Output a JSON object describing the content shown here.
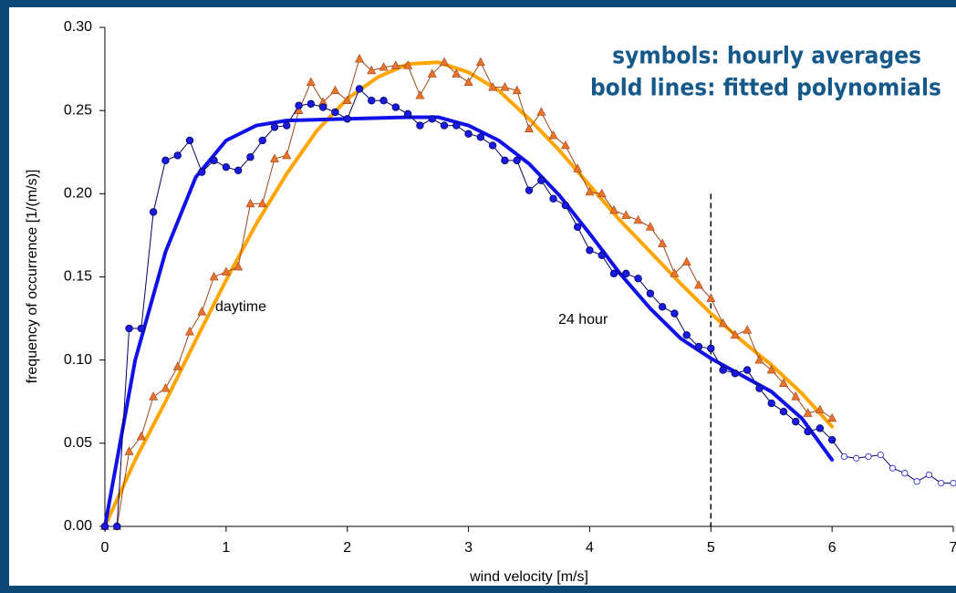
{
  "chart_data": {
    "type": "line",
    "xlabel": "wind velocity [m/s]",
    "ylabel": "frequency of occurrence [1/(m/s)]",
    "xlim": [
      0,
      7
    ],
    "ylim": [
      0,
      0.3
    ],
    "xticks": [
      0,
      1,
      2,
      3,
      4,
      5,
      6,
      7
    ],
    "yticks": [
      {
        "value": 0,
        "label": "0.00"
      },
      {
        "value": 0.05,
        "label": "0.05"
      },
      {
        "value": 0.1,
        "label": "0.10"
      },
      {
        "value": 0.15,
        "label": "0.15"
      },
      {
        "value": 0.2,
        "label": "0.20"
      },
      {
        "value": 0.25,
        "label": "0.25"
      },
      {
        "value": 0.3,
        "label": "0.30"
      }
    ],
    "grid": false,
    "annotations": [
      "symbols: hourly averages",
      "bold lines: fitted polynomials",
      "daytime",
      "24 hour"
    ],
    "reference_line": {
      "x": 5,
      "y_top": 0.2
    },
    "series": [
      {
        "style": "fit",
        "color": "#ffa500",
        "x": [
          0,
          0.25,
          0.5,
          0.75,
          1,
          1.25,
          1.5,
          1.75,
          2,
          2.25,
          2.5,
          2.75,
          3,
          3.25,
          3.5,
          3.75,
          4,
          4.25,
          4.5,
          4.75,
          5,
          5.25,
          5.5,
          5.75,
          6
        ],
        "values": [
          0,
          0.04,
          0.075,
          0.112,
          0.148,
          0.182,
          0.212,
          0.238,
          0.257,
          0.27,
          0.278,
          0.279,
          0.273,
          0.262,
          0.245,
          0.226,
          0.205,
          0.184,
          0.165,
          0.146,
          0.128,
          0.112,
          0.097,
          0.08,
          0.06
        ]
      },
      {
        "style": "markers",
        "marker": "triangle",
        "color": "#e8742c",
        "line_color": "#a0451c",
        "x": [
          0,
          0.1,
          0.2,
          0.3,
          0.4,
          0.5,
          0.6,
          0.7,
          0.8,
          0.9,
          1,
          1.1,
          1.2,
          1.3,
          1.4,
          1.5,
          1.6,
          1.7,
          1.8,
          1.9,
          2,
          2.1,
          2.2,
          2.3,
          2.4,
          2.5,
          2.6,
          2.7,
          2.8,
          2.9,
          3,
          3.1,
          3.2,
          3.3,
          3.4,
          3.5,
          3.6,
          3.7,
          3.8,
          3.9,
          4,
          4.1,
          4.2,
          4.3,
          4.4,
          4.5,
          4.6,
          4.7,
          4.8,
          4.9,
          5,
          5.1,
          5.2,
          5.3,
          5.4,
          5.5,
          5.6,
          5.7,
          5.8,
          5.9,
          6
        ],
        "values": [
          0,
          0,
          0.045,
          0.054,
          0.078,
          0.083,
          0.096,
          0.117,
          0.129,
          0.15,
          0.153,
          0.156,
          0.194,
          0.194,
          0.221,
          0.223,
          0.25,
          0.267,
          0.255,
          0.262,
          0.256,
          0.281,
          0.274,
          0.276,
          0.277,
          0.277,
          0.259,
          0.272,
          0.279,
          0.272,
          0.267,
          0.279,
          0.264,
          0.264,
          0.262,
          0.239,
          0.249,
          0.235,
          0.229,
          0.215,
          0.201,
          0.2,
          0.19,
          0.187,
          0.184,
          0.18,
          0.17,
          0.152,
          0.159,
          0.145,
          0.137,
          0.122,
          0.115,
          0.118,
          0.1,
          0.094,
          0.086,
          0.078,
          0.068,
          0.07,
          0.065
        ]
      },
      {
        "style": "fit",
        "color": "#1010e8",
        "x": [
          0,
          0.25,
          0.5,
          0.75,
          1,
          1.25,
          1.5,
          2,
          2.5,
          2.75,
          3,
          3.25,
          3.5,
          3.75,
          4,
          4.25,
          4.5,
          4.75,
          5,
          5.25,
          5.5,
          5.75,
          6
        ],
        "values": [
          0,
          0.1,
          0.165,
          0.21,
          0.232,
          0.241,
          0.244,
          0.245,
          0.246,
          0.246,
          0.241,
          0.232,
          0.218,
          0.199,
          0.176,
          0.152,
          0.131,
          0.113,
          0.101,
          0.091,
          0.081,
          0.065,
          0.04
        ]
      },
      {
        "style": "markers",
        "marker": "circle",
        "color": "#1a1ae0",
        "line_color": "#000060",
        "x": [
          0,
          0.1,
          0.2,
          0.3,
          0.4,
          0.5,
          0.6,
          0.7,
          0.8,
          0.9,
          1,
          1.1,
          1.2,
          1.3,
          1.4,
          1.5,
          1.6,
          1.7,
          1.8,
          1.9,
          2,
          2.1,
          2.2,
          2.3,
          2.4,
          2.5,
          2.6,
          2.7,
          2.8,
          2.9,
          3,
          3.1,
          3.2,
          3.3,
          3.4,
          3.5,
          3.6,
          3.7,
          3.8,
          3.9,
          4,
          4.1,
          4.2,
          4.3,
          4.4,
          4.5,
          4.6,
          4.7,
          4.8,
          4.9,
          5,
          5.1,
          5.2,
          5.3,
          5.4,
          5.5,
          5.6,
          5.7,
          5.8,
          5.9,
          6
        ],
        "values": [
          0,
          0,
          0.119,
          0.119,
          0.189,
          0.22,
          0.223,
          0.232,
          0.213,
          0.22,
          0.216,
          0.214,
          0.222,
          0.232,
          0.24,
          0.241,
          0.253,
          0.254,
          0.252,
          0.249,
          0.245,
          0.263,
          0.256,
          0.256,
          0.252,
          0.248,
          0.241,
          0.245,
          0.241,
          0.241,
          0.236,
          0.234,
          0.229,
          0.22,
          0.22,
          0.202,
          0.208,
          0.197,
          0.193,
          0.18,
          0.166,
          0.163,
          0.152,
          0.152,
          0.149,
          0.14,
          0.132,
          0.128,
          0.115,
          0.108,
          0.107,
          0.094,
          0.092,
          0.094,
          0.083,
          0.074,
          0.069,
          0.063,
          0.057,
          0.059,
          0.052
        ]
      },
      {
        "style": "markers",
        "marker": "open-circle",
        "color": "#1a1ae0",
        "line_color": "#000060",
        "continues_previous": true,
        "x": [
          6.1,
          6.2,
          6.3,
          6.4,
          6.5,
          6.6,
          6.7,
          6.8,
          6.9,
          7
        ],
        "values": [
          0.042,
          0.041,
          0.042,
          0.043,
          0.035,
          0.032,
          0.027,
          0.031,
          0.026,
          0.026
        ]
      }
    ]
  }
}
